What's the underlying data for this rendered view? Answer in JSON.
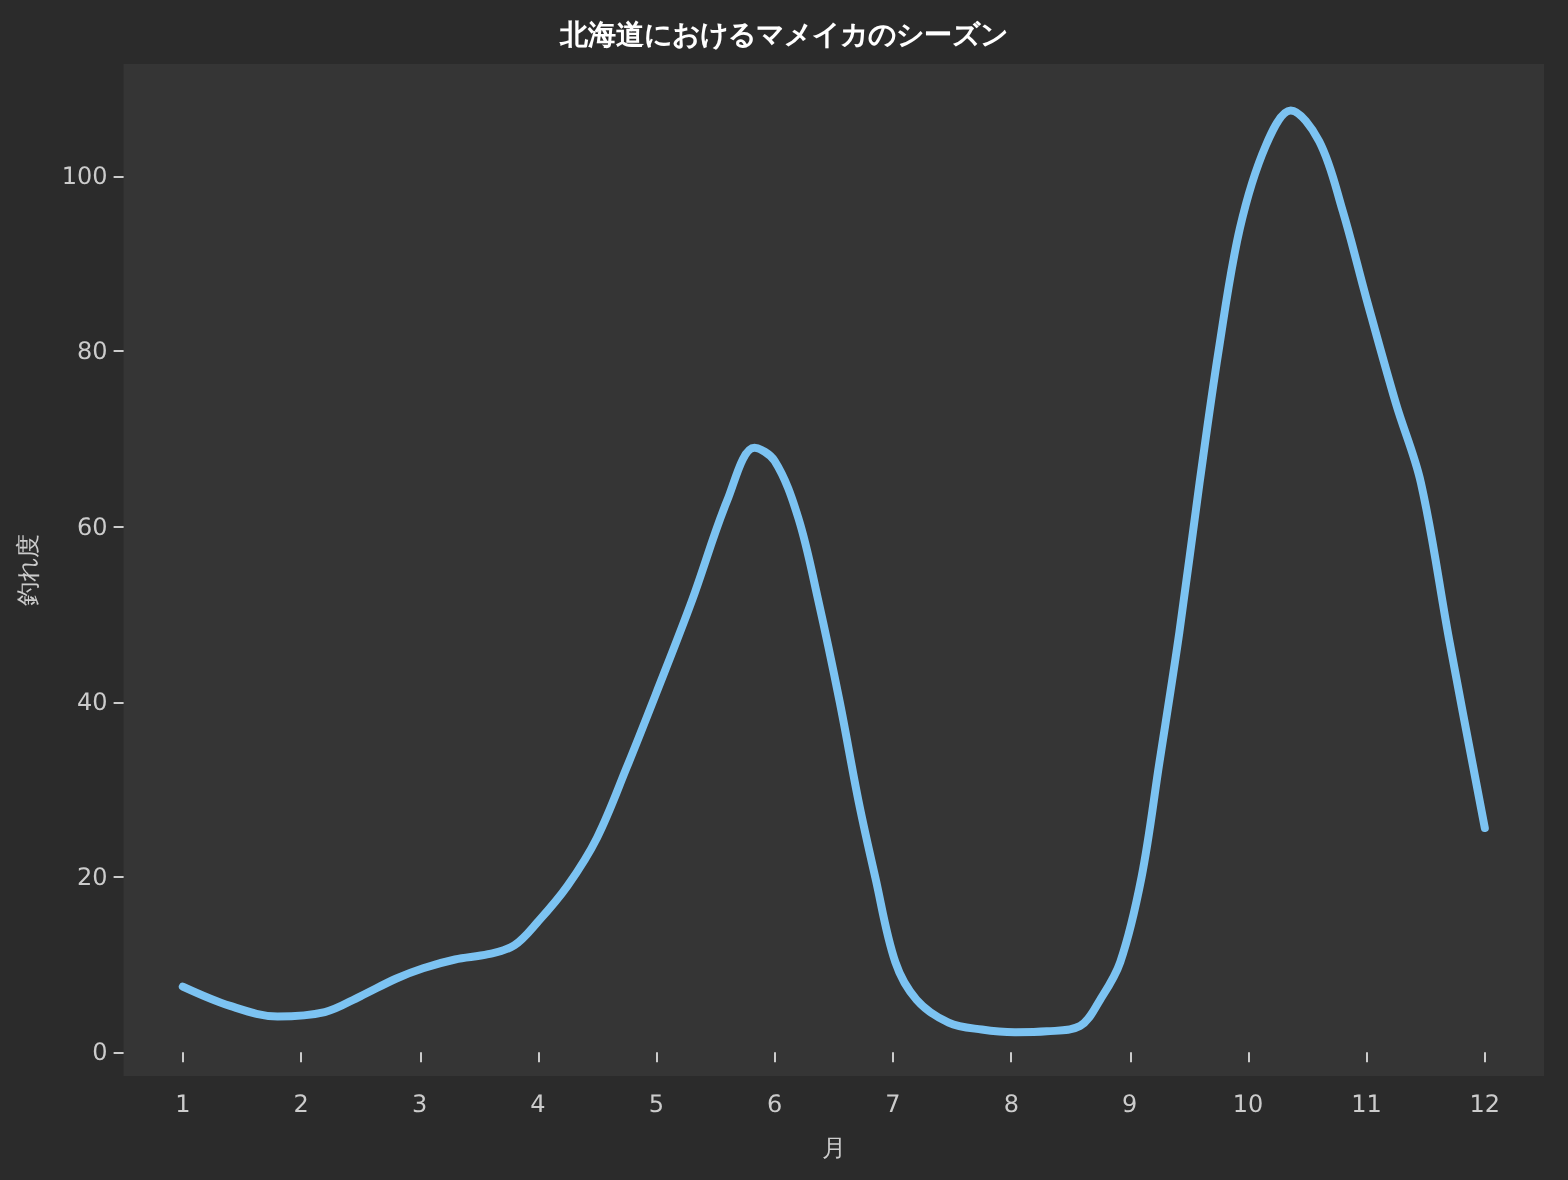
{
  "chart_data": {
    "type": "line",
    "title": "北海道におけるマメイカのシーズン",
    "xlabel": "月",
    "ylabel": "釣れ度",
    "series": [
      {
        "color": "#7cc3f2",
        "x": [
          1,
          1.4,
          1.8,
          2.2,
          2.5,
          2.8,
          3.03,
          3.3,
          3.58,
          3.8,
          4,
          4.25,
          4.5,
          4.75,
          5,
          5.3,
          5.6,
          5.83,
          6,
          6.2,
          6.37,
          6.55,
          6.71,
          6.85,
          7.02,
          7.2,
          7.47,
          7.75,
          8.03,
          8.3,
          8.58,
          8.75,
          8.92,
          9.1,
          9.25,
          9.42,
          9.59,
          9.75,
          9.93,
          10.15,
          10.36,
          10.6,
          10.8,
          11,
          11.25,
          11.46,
          11.7,
          12
        ],
        "values": [
          7.5,
          5.3,
          4.1,
          4.6,
          6.4,
          8.4,
          9.6,
          10.6,
          11.2,
          12.2,
          14.9,
          19,
          24.5,
          32.5,
          41,
          51.5,
          63,
          69,
          67.5,
          61,
          51.5,
          40,
          28.6,
          20,
          10.3,
          6,
          3.4,
          2.6,
          2.3,
          2.4,
          3,
          6,
          10.3,
          20,
          33,
          48,
          65,
          80,
          94,
          103.5,
          107.5,
          104,
          96,
          86,
          74,
          65,
          47,
          25.6
        ]
      }
    ],
    "xlim": [
      0.5,
      12.5
    ],
    "ylim": [
      -2.7,
      112.8
    ],
    "xticks": [
      1,
      2,
      3,
      4,
      5,
      6,
      7,
      8,
      9,
      10,
      11,
      12
    ],
    "yticks": [
      0,
      20,
      40,
      60,
      80,
      100
    ],
    "grid": false,
    "marker": "none",
    "line_style": "solid"
  }
}
